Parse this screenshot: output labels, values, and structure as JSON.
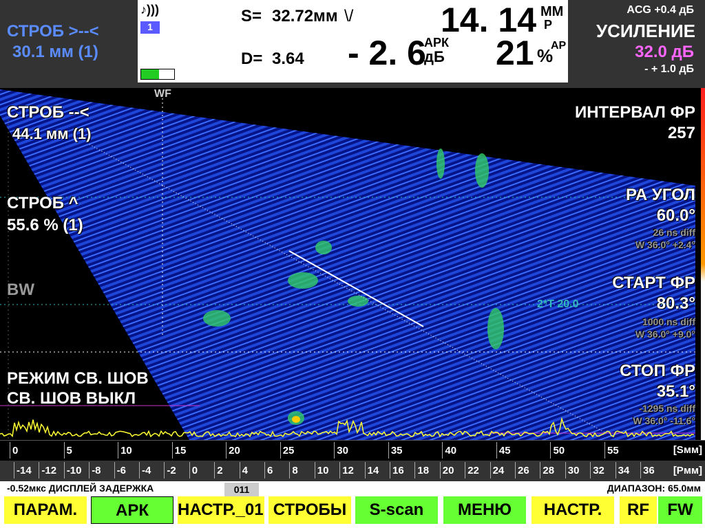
{
  "header": {
    "gate_label": "СТРОБ >--<",
    "gate_value": "30.1 мм (1)",
    "channel": "1",
    "s_label": "S=",
    "s_value": "32.72мм",
    "d_label": "D=",
    "d_value": "3.64",
    "big_value": "14. 14",
    "big_unit_top": "ММ",
    "big_unit_bottom": "Р",
    "dac_value": "- 2. 6",
    "dac_unit_top": "АРК",
    "dac_unit_bottom": "дБ",
    "percent_value": "21",
    "percent_unit": "%",
    "percent_sub": "АР",
    "acg": "ACG +0.4 дБ",
    "gain_label": "УСИЛЕНИЕ",
    "gain_value": "32.0 дБ",
    "gain_step": "- + 1.0 дБ"
  },
  "scan": {
    "wf": "WF",
    "bw": "BW",
    "gate1_label": "СТРОБ --<",
    "gate1_value": "44.1 мм (1)",
    "gate2_label": "СТРОБ ^",
    "gate2_value": "55.6 % (1)",
    "weld_mode": "РЕЖИМ СВ. ШОВ",
    "weld_off": "СВ. ШОВ ВЫКЛ",
    "interval_label": "ИНТЕРВАЛ ФР",
    "interval_value": "257",
    "angle_label": "РА УГОЛ",
    "angle_value": "60.0°",
    "angle_diff": "26 ns diff",
    "angle_w": "W 36.0° +2.4°",
    "start_label": "СТАРТ ФР",
    "start_value": "80.3°",
    "start_diff": "1000 ns diff",
    "start_w": "W 36.0° +9.0°",
    "stop_label": "СТОП ФР",
    "stop_value": "35.1°",
    "stop_diff": "-1295 ns diff",
    "stop_w": "W 36.0° -11.6°",
    "marker": "2*T 20.0"
  },
  "rulers": {
    "s_ticks": [
      0,
      5,
      10,
      15,
      20,
      25,
      30,
      35,
      40,
      45,
      50,
      55
    ],
    "s_unit": "[Sмм]",
    "p_ticks": [
      -14,
      -12,
      -10,
      -8,
      -6,
      -4,
      -2,
      0,
      2,
      4,
      6,
      8,
      10,
      12,
      14,
      16,
      18,
      20,
      22,
      24,
      26,
      28,
      30,
      32,
      34,
      36
    ],
    "p_unit": "[Pмм]"
  },
  "status": {
    "delay": "-0.52мкс ДИСПЛЕЙ ЗАДЕРЖКА",
    "tab": "011",
    "range": "ДИАПАЗОН: 65.0мм"
  },
  "buttons": [
    "ПАРАМ.",
    "АРК",
    "НАСТР._01:",
    "СТРОБЫ",
    "S-scan",
    "МЕНЮ",
    "НАСТР.",
    "RF",
    "FW"
  ]
}
